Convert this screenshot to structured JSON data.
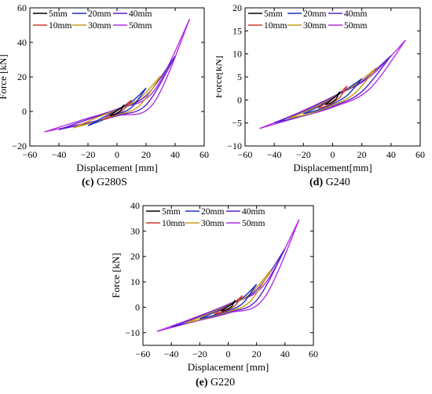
{
  "chart_data": [
    {
      "type": "line",
      "panel_letter": "(c)",
      "panel_name": "G280S",
      "xlabel": "Displacement [mm]",
      "ylabel": "Force [kN]",
      "xlim": [
        -60,
        60
      ],
      "ylim": [
        -20,
        60
      ],
      "xticks": [
        -60,
        -40,
        -20,
        0,
        20,
        40,
        60
      ],
      "yticks": [
        -20,
        0,
        20,
        40,
        60
      ],
      "grid": false,
      "legend": "top-left",
      "series": [
        {
          "name": "5mm",
          "color": "#000000",
          "amplitude": 5,
          "up": [
            [
              -5,
              -2.6
            ],
            [
              -2.5,
              -1.0
            ],
            [
              0,
              0.4
            ],
            [
              2.5,
              1.9
            ],
            [
              5,
              3.8
            ]
          ],
          "down": [
            [
              5,
              3.8
            ],
            [
              2.5,
              0.6
            ],
            [
              0,
              -0.9
            ],
            [
              -2.5,
              -1.9
            ],
            [
              -5,
              -2.6
            ]
          ]
        },
        {
          "name": "10mm",
          "color": "#d03a2a",
          "amplitude": 10,
          "up": [
            [
              -10,
              -4.8
            ],
            [
              -5,
              -2.2
            ],
            [
              0,
              0.6
            ],
            [
              5,
              3.3
            ],
            [
              10,
              6.6
            ]
          ],
          "down": [
            [
              10,
              6.6
            ],
            [
              5,
              1.4
            ],
            [
              0,
              -1.2
            ],
            [
              -5,
              -3.3
            ],
            [
              -10,
              -4.8
            ]
          ]
        },
        {
          "name": "20mm",
          "color": "#1f2fbf",
          "amplitude": 20,
          "up": [
            [
              -20,
              -8.2
            ],
            [
              -10,
              -3.7
            ],
            [
              0,
              0.8
            ],
            [
              10,
              5.5
            ],
            [
              20,
              13.5
            ]
          ],
          "down": [
            [
              20,
              13.5
            ],
            [
              10,
              2.3
            ],
            [
              0,
              -1.6
            ],
            [
              -10,
              -5.0
            ],
            [
              -20,
              -8.2
            ]
          ]
        },
        {
          "name": "30mm",
          "color": "#c99a1a",
          "amplitude": 30,
          "up": [
            [
              -30,
              -9.5
            ],
            [
              -15,
              -3.9
            ],
            [
              0,
              1.0
            ],
            [
              15,
              7.2
            ],
            [
              30,
              20.5
            ]
          ],
          "down": [
            [
              30,
              20.5
            ],
            [
              15,
              3.0
            ],
            [
              0,
              -2.0
            ],
            [
              -15,
              -6.0
            ],
            [
              -30,
              -9.5
            ]
          ]
        },
        {
          "name": "40mm",
          "color": "#5a1fc9",
          "amplitude": 40,
          "up": [
            [
              -40,
              -10.5
            ],
            [
              -20,
              -4.6
            ],
            [
              0,
              1.2
            ],
            [
              20,
              9.2
            ],
            [
              40,
              32.0
            ]
          ],
          "down": [
            [
              40,
              32.0
            ],
            [
              20,
              3.8
            ],
            [
              0,
              -2.3
            ],
            [
              -20,
              -6.8
            ],
            [
              -40,
              -10.5
            ]
          ]
        },
        {
          "name": "50mm",
          "color": "#b42ee6",
          "amplitude": 50,
          "up": [
            [
              -50,
              -11.8
            ],
            [
              -25,
              -5.2
            ],
            [
              0,
              1.4
            ],
            [
              25,
              11.5
            ],
            [
              50,
              53.5
            ]
          ],
          "down": [
            [
              50,
              53.5
            ],
            [
              25,
              4.6
            ],
            [
              0,
              -2.6
            ],
            [
              -25,
              -7.4
            ],
            [
              -50,
              -11.8
            ]
          ]
        }
      ]
    },
    {
      "type": "line",
      "panel_letter": "(d)",
      "panel_name": "G240",
      "xlabel": "Displacement[mm]",
      "ylabel": "Force[kN]",
      "xlim": [
        -60,
        60
      ],
      "ylim": [
        -10,
        20
      ],
      "xticks": [
        -60,
        -40,
        -20,
        0,
        20,
        40,
        60
      ],
      "yticks": [
        -10,
        -5,
        0,
        5,
        10,
        15,
        20
      ],
      "grid": false,
      "legend": "top-left",
      "series": [
        {
          "name": "5mm",
          "color": "#000000",
          "amplitude": 5,
          "up": [
            [
              -5,
              -1.0
            ],
            [
              -2.5,
              -0.4
            ],
            [
              0,
              0.2
            ],
            [
              2.5,
              0.9
            ],
            [
              5,
              1.8
            ]
          ],
          "down": [
            [
              5,
              1.8
            ],
            [
              2.5,
              0.3
            ],
            [
              0,
              -0.4
            ],
            [
              -2.5,
              -0.8
            ],
            [
              -5,
              -1.0
            ]
          ]
        },
        {
          "name": "10mm",
          "color": "#d03a2a",
          "amplitude": 10,
          "up": [
            [
              -10,
              -1.8
            ],
            [
              -5,
              -0.8
            ],
            [
              0,
              0.3
            ],
            [
              5,
              1.6
            ],
            [
              10,
              3.0
            ]
          ],
          "down": [
            [
              10,
              3.0
            ],
            [
              5,
              0.6
            ],
            [
              0,
              -0.6
            ],
            [
              -5,
              -1.4
            ],
            [
              -10,
              -1.8
            ]
          ]
        },
        {
          "name": "20mm",
          "color": "#1f2fbf",
          "amplitude": 20,
          "up": [
            [
              -20,
              -3.0
            ],
            [
              -10,
              -1.5
            ],
            [
              0,
              0.4
            ],
            [
              10,
              2.4
            ],
            [
              20,
              4.6
            ]
          ],
          "down": [
            [
              20,
              4.6
            ],
            [
              10,
              1.0
            ],
            [
              0,
              -0.9
            ],
            [
              -10,
              -2.2
            ],
            [
              -20,
              -3.0
            ]
          ]
        },
        {
          "name": "30mm",
          "color": "#c99a1a",
          "amplitude": 30,
          "up": [
            [
              -30,
              -4.0
            ],
            [
              -15,
              -2.0
            ],
            [
              0,
              0.5
            ],
            [
              15,
              3.2
            ],
            [
              30,
              7.0
            ]
          ],
          "down": [
            [
              30,
              7.0
            ],
            [
              15,
              1.4
            ],
            [
              0,
              -1.2
            ],
            [
              -15,
              -2.9
            ],
            [
              -30,
              -4.0
            ]
          ]
        },
        {
          "name": "40mm",
          "color": "#5a1fc9",
          "amplitude": 40,
          "up": [
            [
              -40,
              -5.0
            ],
            [
              -20,
              -2.5
            ],
            [
              0,
              0.6
            ],
            [
              20,
              4.0
            ],
            [
              40,
              9.6
            ]
          ],
          "down": [
            [
              40,
              9.6
            ],
            [
              20,
              1.8
            ],
            [
              0,
              -1.4
            ],
            [
              -20,
              -3.4
            ],
            [
              -40,
              -5.0
            ]
          ]
        },
        {
          "name": "50mm",
          "color": "#b42ee6",
          "amplitude": 50,
          "up": [
            [
              -50,
              -6.2
            ],
            [
              -25,
              -3.0
            ],
            [
              0,
              0.7
            ],
            [
              25,
              4.9
            ],
            [
              50,
              13.0
            ]
          ],
          "down": [
            [
              50,
              13.0
            ],
            [
              25,
              2.3
            ],
            [
              0,
              -1.6
            ],
            [
              -25,
              -3.9
            ],
            [
              -50,
              -6.2
            ]
          ]
        }
      ]
    },
    {
      "type": "line",
      "panel_letter": "(e)",
      "panel_name": "G220",
      "xlabel": "Displacement [mm]",
      "ylabel": "Force [kN]",
      "xlim": [
        -60,
        60
      ],
      "ylim": [
        -15,
        40
      ],
      "xticks": [
        -60,
        -40,
        -20,
        0,
        20,
        40,
        60
      ],
      "yticks": [
        -10,
        0,
        10,
        20,
        30,
        40
      ],
      "grid": false,
      "legend": "top-left",
      "series": [
        {
          "name": "5mm",
          "color": "#000000",
          "amplitude": 5,
          "up": [
            [
              -5,
              -1.5
            ],
            [
              -2.5,
              -0.6
            ],
            [
              0,
              0.3
            ],
            [
              2.5,
              1.2
            ],
            [
              5,
              2.8
            ]
          ],
          "down": [
            [
              5,
              2.8
            ],
            [
              2.5,
              0.4
            ],
            [
              0,
              -0.6
            ],
            [
              -2.5,
              -1.2
            ],
            [
              -5,
              -1.5
            ]
          ]
        },
        {
          "name": "10mm",
          "color": "#d03a2a",
          "amplitude": 10,
          "up": [
            [
              -10,
              -2.8
            ],
            [
              -5,
              -1.2
            ],
            [
              0,
              0.4
            ],
            [
              5,
              2.2
            ],
            [
              10,
              4.6
            ]
          ],
          "down": [
            [
              10,
              4.6
            ],
            [
              5,
              0.8
            ],
            [
              0,
              -0.9
            ],
            [
              -5,
              -2.0
            ],
            [
              -10,
              -2.8
            ]
          ]
        },
        {
          "name": "20mm",
          "color": "#1f2fbf",
          "amplitude": 20,
          "up": [
            [
              -20,
              -4.6
            ],
            [
              -10,
              -2.1
            ],
            [
              0,
              0.6
            ],
            [
              10,
              3.6
            ],
            [
              20,
              9.0
            ]
          ],
          "down": [
            [
              20,
              9.0
            ],
            [
              10,
              1.4
            ],
            [
              0,
              -1.3
            ],
            [
              -10,
              -3.2
            ],
            [
              -20,
              -4.6
            ]
          ]
        },
        {
          "name": "30mm",
          "color": "#c99a1a",
          "amplitude": 30,
          "up": [
            [
              -30,
              -6.2
            ],
            [
              -15,
              -2.9
            ],
            [
              0,
              0.8
            ],
            [
              15,
              5.0
            ],
            [
              30,
              14.5
            ]
          ],
          "down": [
            [
              30,
              14.5
            ],
            [
              15,
              2.0
            ],
            [
              0,
              -1.7
            ],
            [
              -15,
              -4.2
            ],
            [
              -30,
              -6.2
            ]
          ]
        },
        {
          "name": "40mm",
          "color": "#5a1fc9",
          "amplitude": 40,
          "up": [
            [
              -40,
              -7.8
            ],
            [
              -20,
              -3.6
            ],
            [
              0,
              1.0
            ],
            [
              20,
              6.8
            ],
            [
              40,
              23.0
            ]
          ],
          "down": [
            [
              40,
              23.0
            ],
            [
              20,
              2.7
            ],
            [
              0,
              -2.0
            ],
            [
              -20,
              -5.0
            ],
            [
              -40,
              -7.8
            ]
          ]
        },
        {
          "name": "50mm",
          "color": "#b42ee6",
          "amplitude": 50,
          "up": [
            [
              -50,
              -9.5
            ],
            [
              -25,
              -4.4
            ],
            [
              0,
              1.2
            ],
            [
              25,
              8.6
            ],
            [
              50,
              34.5
            ]
          ],
          "down": [
            [
              50,
              34.5
            ],
            [
              25,
              3.4
            ],
            [
              0,
              -2.3
            ],
            [
              -25,
              -5.8
            ],
            [
              -50,
              -9.5
            ]
          ]
        }
      ]
    }
  ]
}
